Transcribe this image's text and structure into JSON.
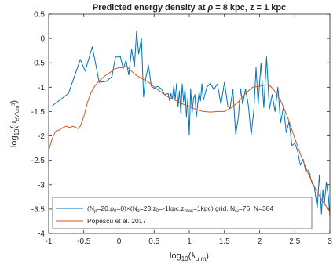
{
  "chart_data": {
    "type": "line",
    "title": "Predicted energy density at ρ = 8 kpc, z = 1 kpc",
    "xlabel": "log10(λ μm)",
    "ylabel": "log10(u eV/cm^3)",
    "xlim": [
      -1,
      3
    ],
    "ylim": [
      -4,
      0.5
    ],
    "grid": false,
    "legend_position": "bottom-left",
    "xticks": [
      -1,
      -0.5,
      0,
      0.5,
      1,
      1.5,
      2,
      2.5,
      3
    ],
    "xtick_labels": [
      "-1",
      "-0.5",
      "0",
      "0.5",
      "1",
      "1.5",
      "2",
      "2.5",
      "3"
    ],
    "yticks": [
      0.5,
      0,
      -0.5,
      -1,
      -1.5,
      -2,
      -2.5,
      -3,
      -3.5,
      -4
    ],
    "ytick_labels": [
      "0.5",
      "0",
      "-0.5",
      "-1",
      "-1.5",
      "-2",
      "-2.5",
      "-3",
      "-3.5",
      "-4"
    ],
    "series": [
      {
        "name": "(Nρ=20,ρ0=0)×(Nz=23,z0=-1kpc,zmax=1kpc) grid, Nω=76, N=384",
        "color": "#0072BD",
        "x": [
          -0.95,
          -0.72,
          -0.55,
          -0.48,
          -0.38,
          -0.28,
          -0.18,
          -0.1,
          -0.05,
          0.0,
          0.02,
          0.06,
          0.1,
          0.14,
          0.18,
          0.22,
          0.25,
          0.28,
          0.32,
          0.35,
          0.38,
          0.42,
          0.46,
          0.5,
          0.55,
          0.6,
          0.65,
          0.7,
          0.72,
          0.74,
          0.76,
          0.78,
          0.8,
          0.82,
          0.84,
          0.86,
          0.88,
          0.9,
          0.92,
          0.94,
          0.96,
          0.98,
          1.0,
          1.02,
          1.04,
          1.06,
          1.08,
          1.1,
          1.12,
          1.14,
          1.16,
          1.18,
          1.2,
          1.25,
          1.3,
          1.35,
          1.4,
          1.45,
          1.5,
          1.55,
          1.58,
          1.62,
          1.66,
          1.7,
          1.73,
          1.76,
          1.8,
          1.84,
          1.88,
          1.92,
          1.95,
          1.98,
          2.02,
          2.06,
          2.1,
          2.14,
          2.18,
          2.22,
          2.26,
          2.3,
          2.34,
          2.38,
          2.42,
          2.46,
          2.5,
          2.54,
          2.58,
          2.62,
          2.66,
          2.7,
          2.74,
          2.78,
          2.82,
          2.85,
          2.88,
          2.9,
          2.92,
          2.95,
          2.98,
          3.0
        ],
        "y": [
          -1.38,
          -1.13,
          -0.43,
          -0.67,
          -0.17,
          -0.9,
          -0.88,
          -0.78,
          -0.38,
          -0.38,
          -0.37,
          -0.62,
          -0.45,
          -0.75,
          -0.22,
          -0.58,
          0.15,
          -0.32,
          0.0,
          -1.2,
          -0.82,
          -0.55,
          -0.98,
          -1.02,
          -0.98,
          -1.03,
          -1.15,
          -1.13,
          -1.28,
          -1.13,
          -1.25,
          -0.97,
          -1.25,
          -0.92,
          -1.4,
          -1.08,
          -1.55,
          -0.93,
          -1.3,
          -1.03,
          -1.62,
          -1.22,
          -1.98,
          -1.03,
          -1.53,
          -1.23,
          -1.15,
          -1.62,
          -1.35,
          -1.1,
          -1.28,
          -0.93,
          -1.27,
          -1.0,
          -0.92,
          -1.05,
          -0.93,
          -1.35,
          -0.9,
          -1.4,
          -1.43,
          -1.05,
          -1.97,
          -1.6,
          -1.03,
          -1.35,
          -1.03,
          -1.37,
          -1.98,
          -1.45,
          -0.6,
          -1.35,
          -0.5,
          -1.42,
          -0.38,
          -1.45,
          -1.15,
          -1.5,
          -1.0,
          -1.73,
          -1.4,
          -1.93,
          -1.7,
          -2.2,
          -2.15,
          -2.3,
          -2.6,
          -2.48,
          -2.75,
          -2.7,
          -2.95,
          -3.05,
          -3.48,
          -2.8,
          -3.6,
          -3.1,
          -3.42,
          -2.95,
          -3.25,
          -3.65
        ]
      },
      {
        "name": "Popescu et al. 2017",
        "color": "#D95319",
        "x": [
          -1.0,
          -0.95,
          -0.9,
          -0.85,
          -0.8,
          -0.75,
          -0.7,
          -0.66,
          -0.62,
          -0.58,
          -0.55,
          -0.5,
          -0.45,
          -0.4,
          -0.35,
          -0.3,
          -0.25,
          -0.2,
          -0.15,
          -0.1,
          -0.05,
          0.0,
          0.05,
          0.1,
          0.15,
          0.2,
          0.25,
          0.3,
          0.35,
          0.4,
          0.45,
          0.5,
          0.55,
          0.6,
          0.65,
          0.7,
          0.75,
          0.8,
          0.85,
          0.9,
          0.95,
          1.0,
          1.05,
          1.1,
          1.15,
          1.2,
          1.3,
          1.4,
          1.5,
          1.6,
          1.7,
          1.8,
          1.9,
          2.0,
          2.1,
          2.15,
          2.2,
          2.3,
          2.4,
          2.5,
          2.6,
          2.7,
          2.8,
          2.9,
          3.0
        ],
        "y": [
          -2.3,
          -2.05,
          -1.9,
          -1.88,
          -1.83,
          -1.8,
          -1.83,
          -1.8,
          -1.82,
          -1.85,
          -1.8,
          -1.6,
          -1.32,
          -1.12,
          -0.99,
          -0.9,
          -0.83,
          -0.77,
          -0.72,
          -0.67,
          -0.62,
          -0.6,
          -0.6,
          -0.57,
          -0.63,
          -0.7,
          -0.76,
          -0.8,
          -0.84,
          -0.88,
          -0.93,
          -0.99,
          -1.05,
          -1.1,
          -1.15,
          -1.2,
          -1.23,
          -1.27,
          -1.3,
          -1.34,
          -1.37,
          -1.4,
          -1.43,
          -1.46,
          -1.48,
          -1.5,
          -1.51,
          -1.5,
          -1.5,
          -1.42,
          -1.3,
          -1.13,
          -1.0,
          -0.98,
          -0.95,
          -0.97,
          -1.05,
          -1.27,
          -1.62,
          -2.05,
          -2.45,
          -2.8,
          -3.1,
          -3.35,
          -3.55
        ]
      }
    ]
  },
  "labels": {
    "title_prefix": "Predicted energy density at ",
    "title_rho": "ρ",
    "title_suffix": " = 8 kpc, z = 1 kpc",
    "xlabel_main": "log",
    "xlabel_sub": "10",
    "xlabel_paren_open": "(λ",
    "xlabel_sub2": "μ m",
    "xlabel_paren_close": ")",
    "ylabel_main": "log",
    "ylabel_sub": "10",
    "ylabel_paren_open": "(u",
    "ylabel_sub2": "eV/cm",
    "ylabel_sup": "3",
    "ylabel_paren_close": ")"
  },
  "legend": {
    "entry1": {
      "part1": "(N",
      "sub1": "ρ",
      "part2": "=20,ρ",
      "sub2": "0",
      "part3": "=0)×(N",
      "sub3": "z",
      "part4": "=23,z",
      "sub4": "0",
      "part5": "=-1kpc,z",
      "sub5": "max",
      "part6": "=1kpc) grid, N",
      "sub6": "ω",
      "part7": "=76, N=384"
    },
    "entry2": "Popescu et al. 2017"
  }
}
